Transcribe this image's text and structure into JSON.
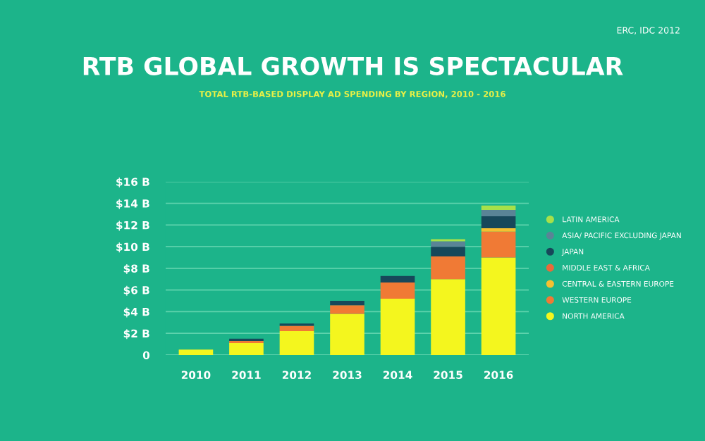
{
  "chart_data": {
    "type": "bar",
    "stacked": true,
    "title": "RTB GLOBAL GROWTH IS SPECTACULAR",
    "subtitle": "TOTAL RTB-BASED DISPLAY AD SPENDING BY REGION, 2010 - 2016",
    "annotations": [
      "ERC, IDC 2012"
    ],
    "categories": [
      "2010",
      "2011",
      "2012",
      "2013",
      "2014",
      "2015",
      "2016"
    ],
    "series": [
      {
        "name": "NORTH AMERICA",
        "color": "#f4f61e",
        "values": [
          0.5,
          1.1,
          2.2,
          3.8,
          5.2,
          7.0,
          9.0
        ]
      },
      {
        "name": "WESTERN EUROPE",
        "color": "#f07a35",
        "values": [
          0,
          0.2,
          0.5,
          0.8,
          1.5,
          2.1,
          2.4
        ]
      },
      {
        "name": "CENTRAL & EASTERN EUROPE",
        "color": "#f5c030",
        "values": [
          0,
          0,
          0,
          0,
          0,
          0,
          0.3
        ]
      },
      {
        "name": "MIDDLE EAST & AFRICA",
        "color": "#e86a3a",
        "values": [
          0,
          0,
          0,
          0,
          0,
          0,
          0
        ]
      },
      {
        "name": "JAPAN",
        "color": "#17485a",
        "values": [
          0,
          0.2,
          0.2,
          0.4,
          0.6,
          0.9,
          1.1
        ]
      },
      {
        "name": "ASIA/ PACIFIC EXCLUDING JAPAN",
        "color": "#5a8496",
        "values": [
          0,
          0,
          0,
          0,
          0,
          0.5,
          0.6
        ]
      },
      {
        "name": "LATIN AMERICA",
        "color": "#a8e04a",
        "values": [
          0,
          0,
          0,
          0,
          0,
          0.2,
          0.4
        ]
      }
    ],
    "ylim": [
      0,
      16
    ],
    "yticks": [
      {
        "value": 0,
        "label": "0"
      },
      {
        "value": 2,
        "label": "$2 B"
      },
      {
        "value": 4,
        "label": "$4 B"
      },
      {
        "value": 6,
        "label": "$6 B"
      },
      {
        "value": 8,
        "label": "$8 B"
      },
      {
        "value": 10,
        "label": "$10 B"
      },
      {
        "value": 12,
        "label": "$12 B"
      },
      {
        "value": 14,
        "label": "$14 B"
      },
      {
        "value": 16,
        "label": "$16 B"
      }
    ],
    "grid": "y",
    "legend": "right"
  }
}
